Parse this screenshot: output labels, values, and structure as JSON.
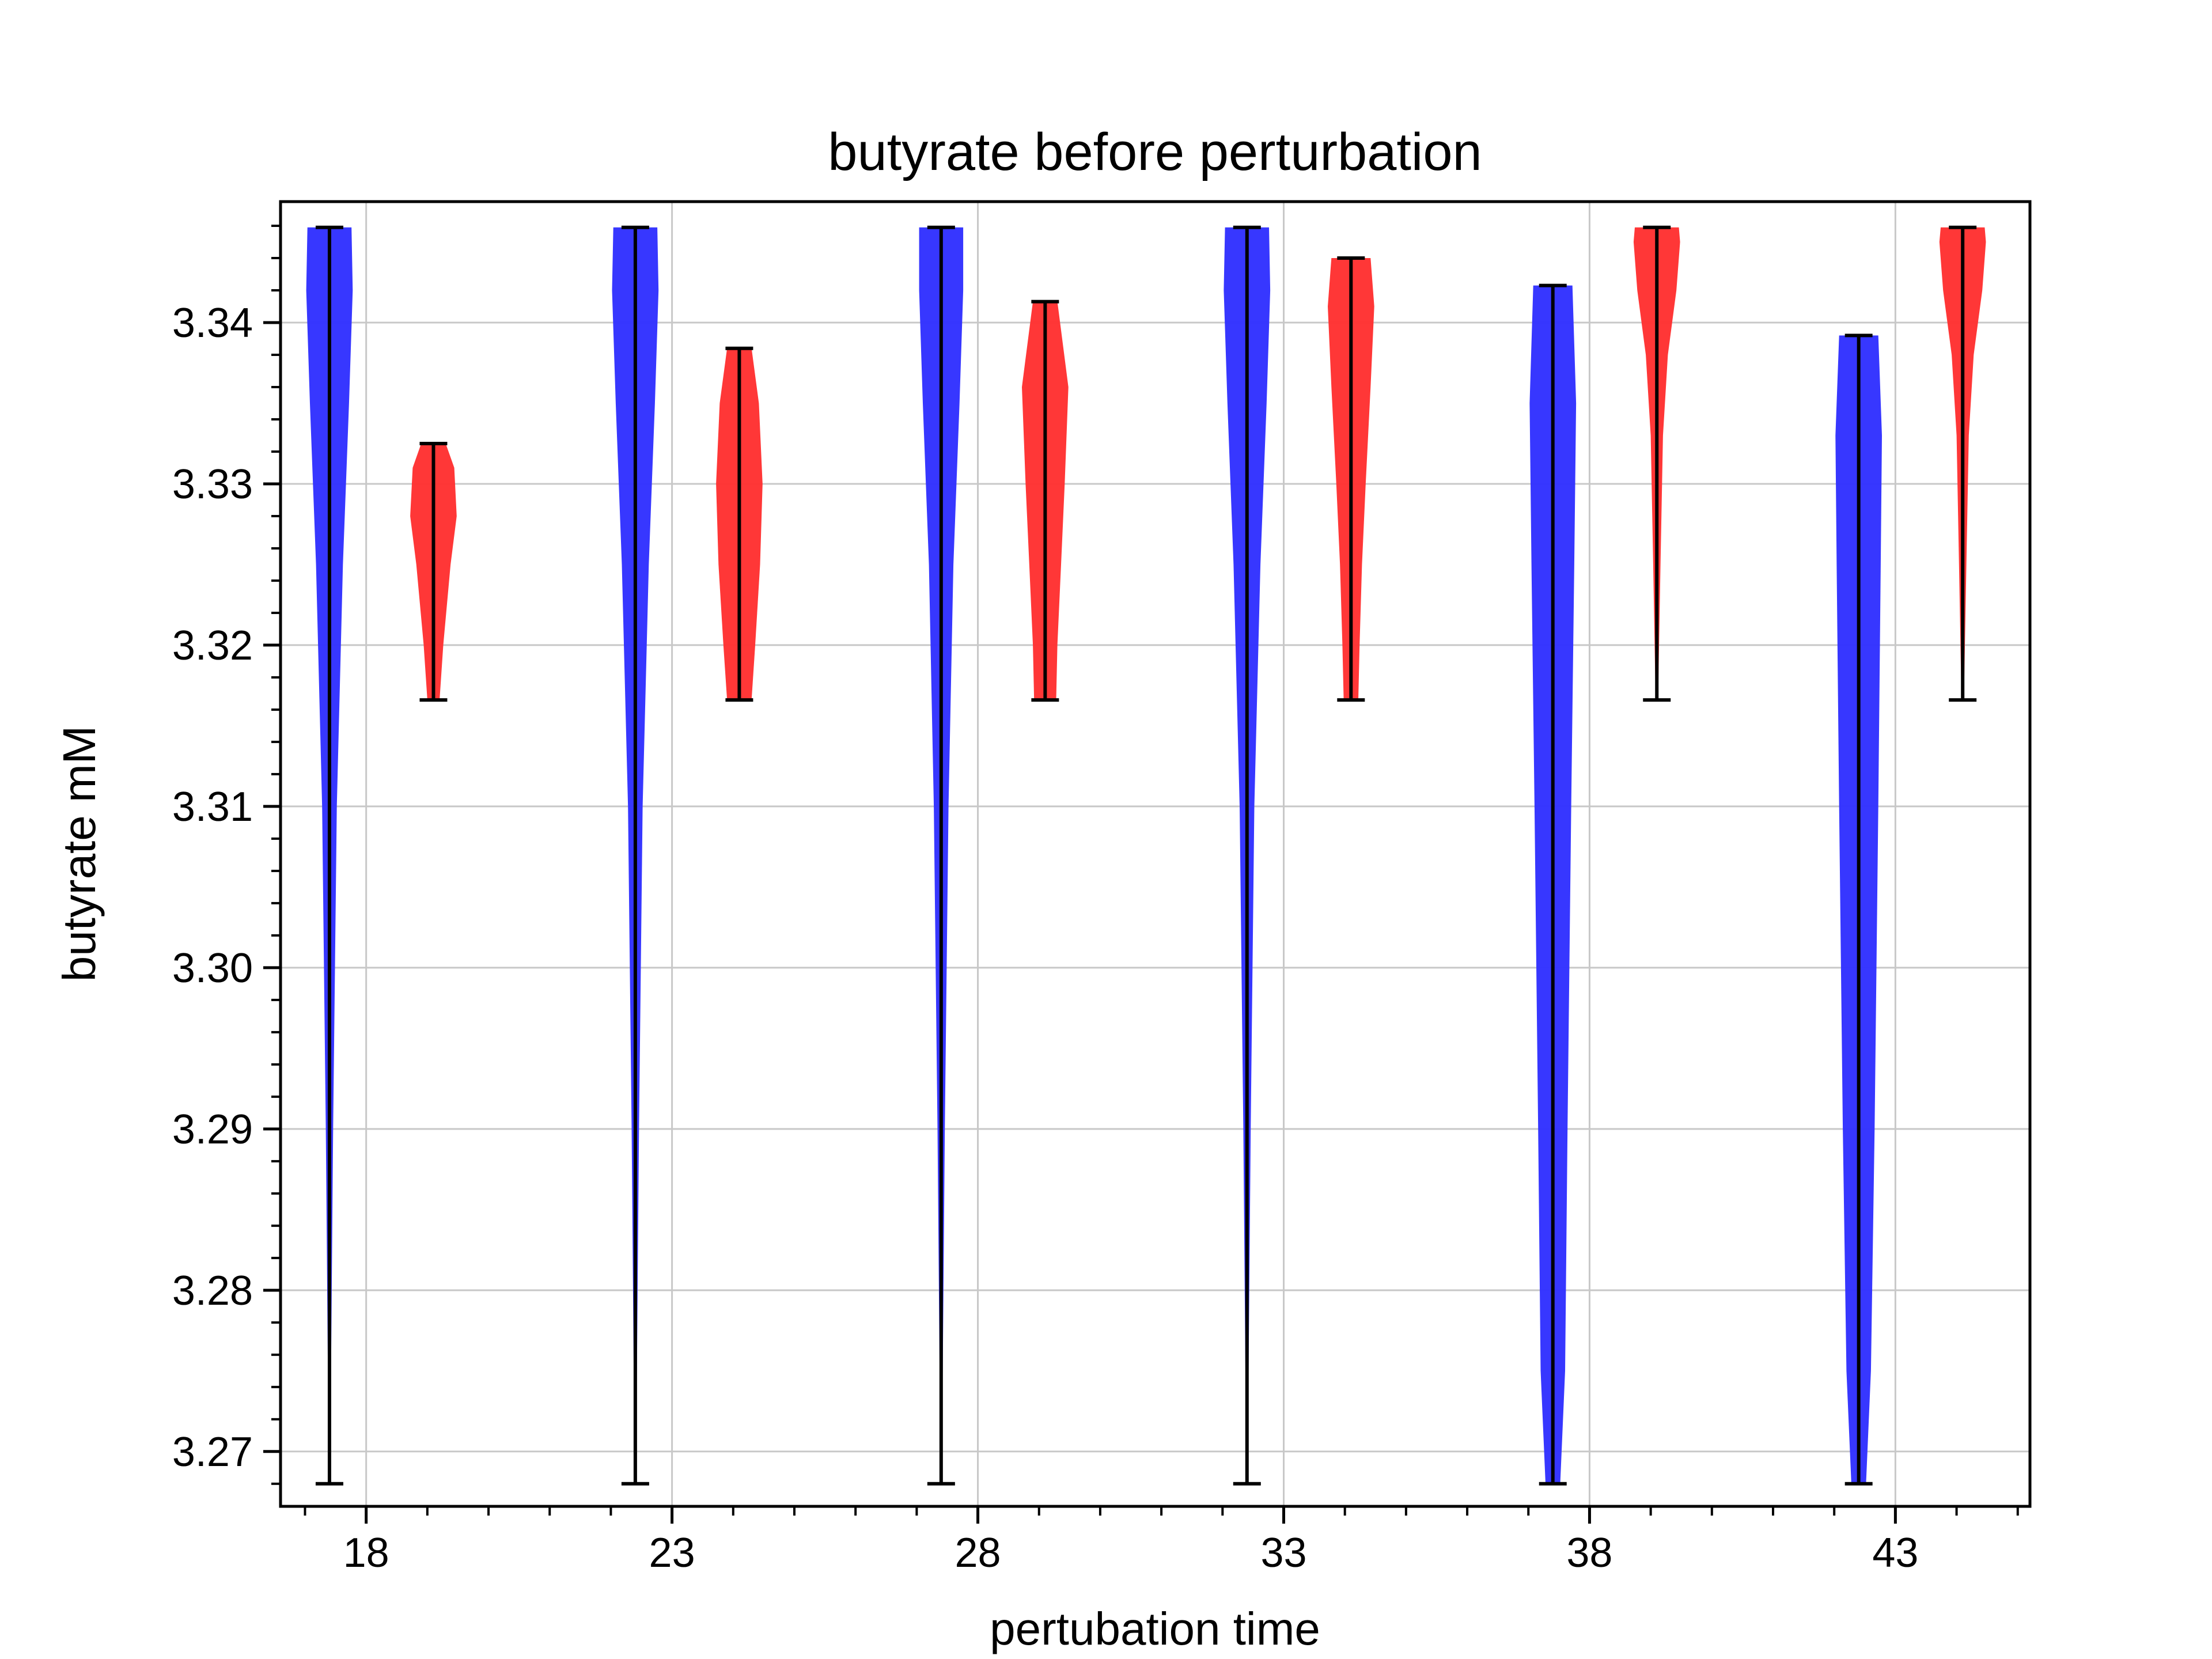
{
  "chart_data": {
    "type": "violin",
    "title": "butyrate before perturbation",
    "xlabel": "pertubation time",
    "ylabel": "butyrate mM",
    "x_ticks": [
      18,
      23,
      28,
      33,
      38,
      43
    ],
    "x_tick_labels": [
      "18",
      "23",
      "28",
      "33",
      "38",
      "43"
    ],
    "xlim": [
      16.6,
      45.2
    ],
    "y_ticks": [
      3.27,
      3.28,
      3.29,
      3.3,
      3.31,
      3.32,
      3.33,
      3.34
    ],
    "y_tick_labels": [
      "3.27",
      "3.28",
      "3.29",
      "3.30",
      "3.31",
      "3.32",
      "3.33",
      "3.34"
    ],
    "ylim": [
      3.2666,
      3.3475
    ],
    "grid": true,
    "colors": {
      "blue": "#3333ff",
      "red": "#ff3333",
      "whisker": "#000000",
      "grid": "#c8c8c8"
    },
    "series": [
      {
        "color": "blue",
        "violins": [
          {
            "x": 17.4,
            "min": 3.268,
            "max": 3.3459,
            "profile": [
              [
                3.268,
                0.01
              ],
              [
                3.29,
                0.06
              ],
              [
                3.31,
                0.12
              ],
              [
                3.325,
                0.22
              ],
              [
                3.335,
                0.32
              ],
              [
                3.342,
                0.38
              ],
              [
                3.3459,
                0.36
              ]
            ]
          },
          {
            "x": 22.4,
            "min": 3.268,
            "max": 3.3459,
            "profile": [
              [
                3.268,
                0.01
              ],
              [
                3.29,
                0.06
              ],
              [
                3.31,
                0.12
              ],
              [
                3.325,
                0.22
              ],
              [
                3.335,
                0.32
              ],
              [
                3.342,
                0.38
              ],
              [
                3.3459,
                0.36
              ]
            ]
          },
          {
            "x": 27.4,
            "min": 3.268,
            "max": 3.3459,
            "profile": [
              [
                3.268,
                0.01
              ],
              [
                3.29,
                0.06
              ],
              [
                3.31,
                0.12
              ],
              [
                3.325,
                0.2
              ],
              [
                3.335,
                0.3
              ],
              [
                3.342,
                0.36
              ],
              [
                3.3459,
                0.36
              ]
            ]
          },
          {
            "x": 32.4,
            "min": 3.268,
            "max": 3.3459,
            "profile": [
              [
                3.268,
                0.01
              ],
              [
                3.29,
                0.06
              ],
              [
                3.31,
                0.12
              ],
              [
                3.325,
                0.22
              ],
              [
                3.335,
                0.32
              ],
              [
                3.342,
                0.38
              ],
              [
                3.3459,
                0.36
              ]
            ]
          },
          {
            "x": 37.4,
            "min": 3.268,
            "max": 3.3423,
            "profile": [
              [
                3.268,
                0.12
              ],
              [
                3.275,
                0.2
              ],
              [
                3.29,
                0.24
              ],
              [
                3.31,
                0.3
              ],
              [
                3.325,
                0.35
              ],
              [
                3.335,
                0.38
              ],
              [
                3.3423,
                0.32
              ]
            ]
          },
          {
            "x": 42.4,
            "min": 3.268,
            "max": 3.3392,
            "profile": [
              [
                3.268,
                0.12
              ],
              [
                3.275,
                0.2
              ],
              [
                3.29,
                0.26
              ],
              [
                3.31,
                0.32
              ],
              [
                3.325,
                0.36
              ],
              [
                3.333,
                0.38
              ],
              [
                3.3392,
                0.32
              ]
            ]
          }
        ]
      },
      {
        "color": "red",
        "violins": [
          {
            "x": 19.1,
            "min": 3.3166,
            "max": 3.3325,
            "profile": [
              [
                3.3166,
                0.1
              ],
              [
                3.32,
                0.16
              ],
              [
                3.325,
                0.28
              ],
              [
                3.328,
                0.38
              ],
              [
                3.331,
                0.34
              ],
              [
                3.3325,
                0.2
              ]
            ]
          },
          {
            "x": 24.1,
            "min": 3.3166,
            "max": 3.3384,
            "profile": [
              [
                3.3166,
                0.2
              ],
              [
                3.32,
                0.26
              ],
              [
                3.325,
                0.34
              ],
              [
                3.33,
                0.38
              ],
              [
                3.335,
                0.32
              ],
              [
                3.3384,
                0.2
              ]
            ]
          },
          {
            "x": 29.1,
            "min": 3.3166,
            "max": 3.3413,
            "profile": [
              [
                3.3166,
                0.18
              ],
              [
                3.32,
                0.2
              ],
              [
                3.325,
                0.26
              ],
              [
                3.33,
                0.32
              ],
              [
                3.336,
                0.38
              ],
              [
                3.3413,
                0.2
              ]
            ]
          },
          {
            "x": 34.1,
            "min": 3.3166,
            "max": 3.344,
            "profile": [
              [
                3.3166,
                0.12
              ],
              [
                3.32,
                0.14
              ],
              [
                3.325,
                0.18
              ],
              [
                3.33,
                0.24
              ],
              [
                3.336,
                0.32
              ],
              [
                3.341,
                0.38
              ],
              [
                3.344,
                0.32
              ]
            ]
          },
          {
            "x": 39.1,
            "min": 3.3166,
            "max": 3.3459,
            "profile": [
              [
                3.3166,
                0.02
              ],
              [
                3.325,
                0.06
              ],
              [
                3.333,
                0.1
              ],
              [
                3.338,
                0.18
              ],
              [
                3.342,
                0.32
              ],
              [
                3.345,
                0.38
              ],
              [
                3.3459,
                0.36
              ]
            ]
          },
          {
            "x": 44.1,
            "min": 3.3166,
            "max": 3.3459,
            "profile": [
              [
                3.3166,
                0.02
              ],
              [
                3.325,
                0.06
              ],
              [
                3.333,
                0.1
              ],
              [
                3.338,
                0.18
              ],
              [
                3.342,
                0.32
              ],
              [
                3.345,
                0.38
              ],
              [
                3.3459,
                0.36
              ]
            ]
          }
        ]
      }
    ]
  }
}
